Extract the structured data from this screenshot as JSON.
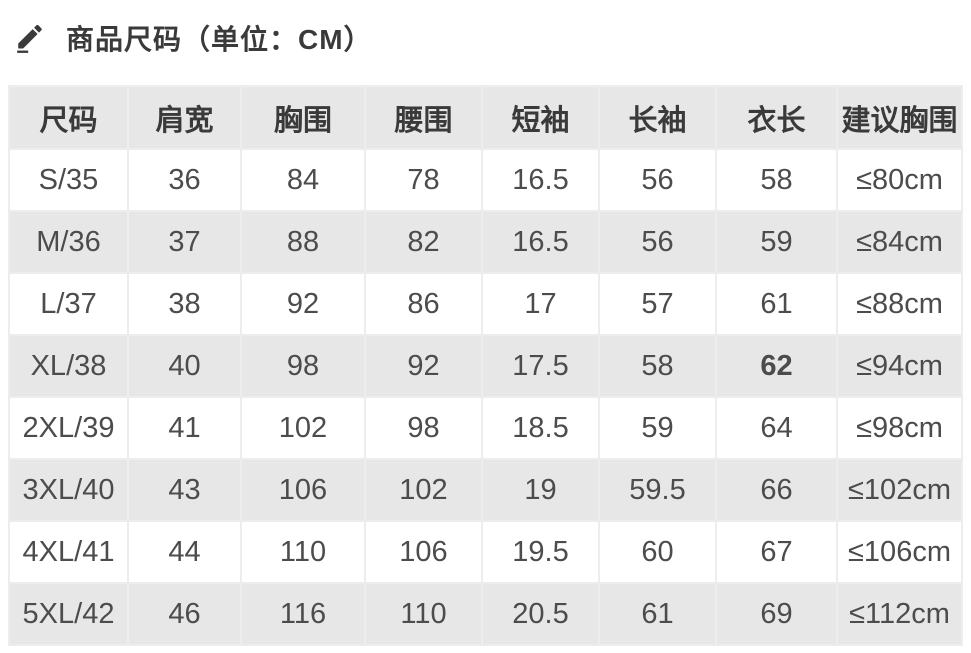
{
  "title": {
    "icon": "pencil-icon",
    "text": "商品尺码（单位：CM）"
  },
  "colors": {
    "teal_header": "#4ab5b0",
    "teal_value": "#3fdcc6",
    "orange": "#ee7f2d",
    "row_gray": "#e7e7e7",
    "header_bg": "#e7e7e7",
    "grid": "#ededed",
    "text_dark": "#3a3a3a",
    "text_muted": "#787878"
  },
  "table": {
    "columns": [
      {
        "key": "size",
        "label": "尺码"
      },
      {
        "key": "shoulder",
        "label": "肩宽"
      },
      {
        "key": "bust",
        "label": "胸围",
        "accent": "teal"
      },
      {
        "key": "waist",
        "label": "腰围"
      },
      {
        "key": "short-sleeve",
        "label": "短袖"
      },
      {
        "key": "long-sleeve",
        "label": "长袖"
      },
      {
        "key": "length",
        "label": "衣长"
      },
      {
        "key": "suggest-bust",
        "label": "建议胸围",
        "accent": "orange"
      }
    ],
    "rows": [
      [
        "S/35",
        "36",
        "84",
        "78",
        "16.5",
        "56",
        "58",
        "≤80cm"
      ],
      [
        "M/36",
        "37",
        "88",
        "82",
        "16.5",
        "56",
        "59",
        "≤84cm"
      ],
      [
        "L/37",
        "38",
        "92",
        "86",
        "17",
        "57",
        "61",
        "≤88cm"
      ],
      [
        "XL/38",
        "40",
        "98",
        "92",
        "17.5",
        "58",
        "62",
        "≤94cm"
      ],
      [
        "2XL/39",
        "41",
        "102",
        "98",
        "18.5",
        "59",
        "64",
        "≤98cm"
      ],
      [
        "3XL/40",
        "43",
        "106",
        "102",
        "19",
        "59.5",
        "66",
        "≤102cm"
      ],
      [
        "4XL/41",
        "44",
        "110",
        "106",
        "19.5",
        "60",
        "67",
        "≤106cm"
      ],
      [
        "5XL/42",
        "46",
        "116",
        "110",
        "20.5",
        "61",
        "69",
        "≤112cm"
      ]
    ]
  },
  "emphasis_cell": {
    "row": 3,
    "col": 6
  }
}
